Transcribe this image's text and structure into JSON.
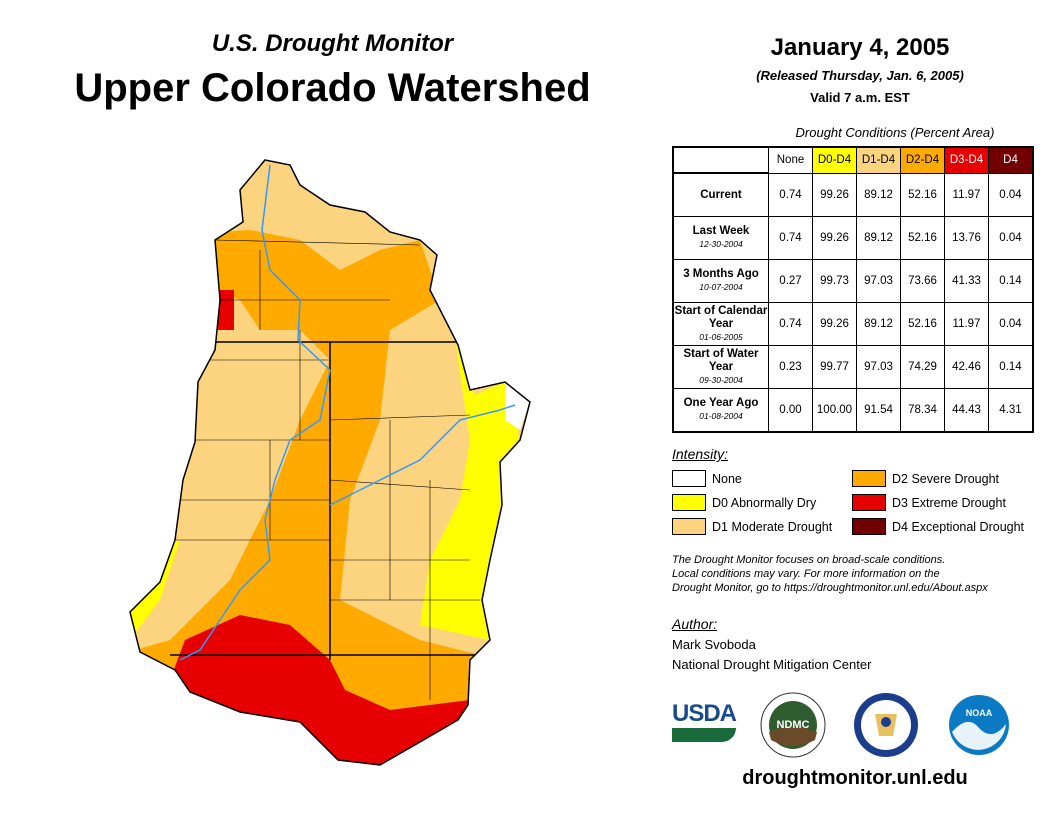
{
  "header": {
    "subtitle": "U.S. Drought Monitor",
    "title": "Upper Colorado Watershed",
    "date": "January 4, 2005",
    "released": "(Released Thursday, Jan. 6, 2005)",
    "valid": "Valid 7 a.m. EST"
  },
  "table": {
    "caption": "Drought Conditions (Percent Area)",
    "columns": [
      {
        "label": "None",
        "color": "#ffffff",
        "text": "#000"
      },
      {
        "label": "D0-D4",
        "color": "#ffff00",
        "text": "#000"
      },
      {
        "label": "D1-D4",
        "color": "#fcd37f",
        "text": "#000"
      },
      {
        "label": "D2-D4",
        "color": "#ffaa00",
        "text": "#000"
      },
      {
        "label": "D3-D4",
        "color": "#e60000",
        "text": "#fff"
      },
      {
        "label": "D4",
        "color": "#730000",
        "text": "#fff"
      }
    ],
    "rows": [
      {
        "label": "Current",
        "date": "",
        "values": [
          "0.74",
          "99.26",
          "89.12",
          "52.16",
          "11.97",
          "0.04"
        ]
      },
      {
        "label": "Last Week",
        "date": "12-30-2004",
        "values": [
          "0.74",
          "99.26",
          "89.12",
          "52.16",
          "13.76",
          "0.04"
        ]
      },
      {
        "label": "3 Months Ago",
        "date": "10-07-2004",
        "values": [
          "0.27",
          "99.73",
          "97.03",
          "73.66",
          "41.33",
          "0.14"
        ]
      },
      {
        "label": "Start of Calendar Year",
        "date": "01-06-2005",
        "values": [
          "0.74",
          "99.26",
          "89.12",
          "52.16",
          "11.97",
          "0.04"
        ]
      },
      {
        "label": "Start of Water Year",
        "date": "09-30-2004",
        "values": [
          "0.23",
          "99.77",
          "97.03",
          "74.29",
          "42.46",
          "0.14"
        ]
      },
      {
        "label": "One Year Ago",
        "date": "01-08-2004",
        "values": [
          "0.00",
          "100.00",
          "91.54",
          "78.34",
          "44.43",
          "4.31"
        ]
      }
    ]
  },
  "legend": {
    "title": "Intensity:",
    "items": [
      {
        "label": "None",
        "color": "#ffffff"
      },
      {
        "label": "D0 Abnormally Dry",
        "color": "#ffff00"
      },
      {
        "label": "D1 Moderate Drought",
        "color": "#fcd37f"
      },
      {
        "label": "D2 Severe Drought",
        "color": "#ffaa00"
      },
      {
        "label": "D3 Extreme Drought",
        "color": "#e60000"
      },
      {
        "label": "D4 Exceptional Drought",
        "color": "#730000"
      }
    ]
  },
  "note": [
    "The Drought Monitor focuses on broad-scale conditions.",
    "Local conditions may vary. For more information on the",
    "Drought Monitor, go to https://droughtmonitor.unl.edu/About.aspx"
  ],
  "author": {
    "title": "Author:",
    "name": "Mark Svoboda",
    "org": "National Drought Mitigation Center"
  },
  "logos": {
    "usda": "USDA",
    "ndmc": "NDMC",
    "noaa": "NOAA"
  },
  "url": "droughtmonitor.unl.edu"
}
